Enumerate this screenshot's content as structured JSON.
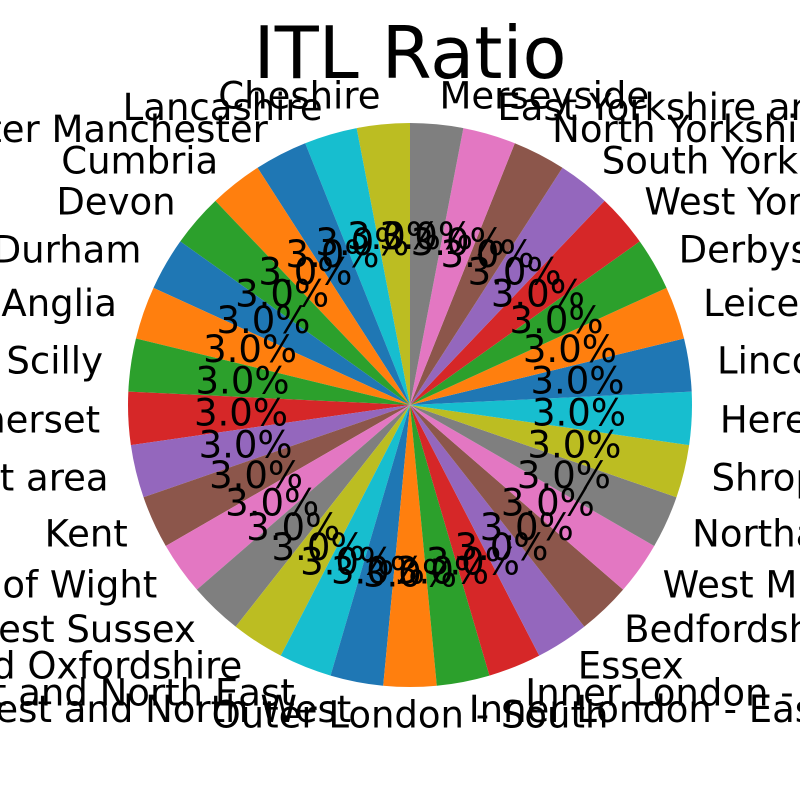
{
  "chart_data": {
    "type": "pie",
    "title": "ITL Ratio",
    "start_angle_deg": 90,
    "direction": "counterclockwise",
    "value_format": "%",
    "slices": [
      {
        "label": "Cheshire",
        "value": 3.0
      },
      {
        "label": "Lancashire",
        "value": 3.0
      },
      {
        "label": "Greater Manchester",
        "value": 3.0
      },
      {
        "label": "Cumbria",
        "value": 3.0
      },
      {
        "label": "Devon",
        "value": 3.0
      },
      {
        "label": "Durham",
        "value": 3.0
      },
      {
        "label": "East Anglia",
        "value": 3.0
      },
      {
        "label": "Cornwall and Isles of Scilly",
        "value": 3.0
      },
      {
        "label": "Dorset and Somerset",
        "value": 3.0
      },
      {
        "label": "Hampshire and Isle of Wight area",
        "value": 3.0
      },
      {
        "label": "Kent",
        "value": 3.0
      },
      {
        "label": "Isle of Wight",
        "value": 3.0
      },
      {
        "label": "West Sussex",
        "value": 3.0
      },
      {
        "label": "Berkshire, Buckinghamshire and Oxfordshire",
        "value": 3.0
      },
      {
        "label": "Outer London - East and North East",
        "value": 3.0
      },
      {
        "label": "Outer London - West and North West",
        "value": 3.0
      },
      {
        "label": "Outer London - South",
        "value": 3.0
      },
      {
        "label": "Inner London - East",
        "value": 3.0
      },
      {
        "label": "Inner London - West",
        "value": 3.0
      },
      {
        "label": "Essex",
        "value": 3.0
      },
      {
        "label": "Bedfordshire and Hertfordshire",
        "value": 3.0
      },
      {
        "label": "West Midlands",
        "value": 3.0
      },
      {
        "label": "Northamptonshire",
        "value": 3.0
      },
      {
        "label": "Shropshire and Staffordshire",
        "value": 3.0
      },
      {
        "label": "Herefordshire, Worcestershire and Warwickshire",
        "value": 3.0
      },
      {
        "label": "Lincolnshire",
        "value": 3.0
      },
      {
        "label": "Leicestershire, Rutland and Northamptonshire",
        "value": 3.0
      },
      {
        "label": "Derbyshire and Nottinghamshire",
        "value": 3.0
      },
      {
        "label": "West Yorkshire",
        "value": 3.0
      },
      {
        "label": "South Yorkshire",
        "value": 3.0
      },
      {
        "label": "North Yorkshire",
        "value": 3.0
      },
      {
        "label": "East Yorkshire and Northern Lincolnshire",
        "value": 3.0
      },
      {
        "label": "Merseyside",
        "value": 3.0
      }
    ],
    "colors": [
      "#bcbd22",
      "#17becf",
      "#1f77b4",
      "#ff7f0e",
      "#2ca02c",
      "#1f77b4",
      "#ff7f0e",
      "#2ca02c",
      "#d62728",
      "#9467bd",
      "#8c564b",
      "#e377c2",
      "#7f7f7f",
      "#bcbd22",
      "#17becf",
      "#1f77b4",
      "#ff7f0e",
      "#2ca02c",
      "#d62728",
      "#9467bd",
      "#8c564b",
      "#e377c2",
      "#7f7f7f",
      "#bcbd22",
      "#17becf",
      "#1f77b4",
      "#ff7f0e",
      "#2ca02c",
      "#d62728",
      "#9467bd",
      "#8c564b",
      "#e377c2",
      "#7f7f7f"
    ]
  }
}
